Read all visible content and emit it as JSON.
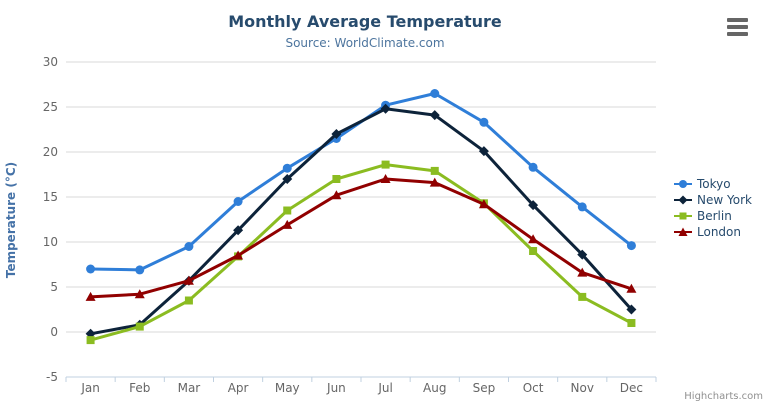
{
  "chart": {
    "title": "Monthly Average Temperature",
    "subtitle": "Source: WorldClimate.com",
    "credits": "Highcharts.com"
  },
  "chart_data": {
    "type": "line",
    "title": "Monthly Average Temperature",
    "subtitle": "Source: WorldClimate.com",
    "categories": [
      "Jan",
      "Feb",
      "Mar",
      "Apr",
      "May",
      "Jun",
      "Jul",
      "Aug",
      "Sep",
      "Oct",
      "Nov",
      "Dec"
    ],
    "series": [
      {
        "name": "Tokyo",
        "color": "#2f7ed8",
        "marker": "circle",
        "values": [
          7.0,
          6.9,
          9.5,
          14.5,
          18.2,
          21.5,
          25.2,
          26.5,
          23.3,
          18.3,
          13.9,
          9.6
        ]
      },
      {
        "name": "New York",
        "color": "#0d233a",
        "marker": "diamond",
        "values": [
          -0.2,
          0.8,
          5.7,
          11.3,
          17.0,
          22.0,
          24.8,
          24.1,
          20.1,
          14.1,
          8.6,
          2.5
        ]
      },
      {
        "name": "Berlin",
        "color": "#8bbc21",
        "marker": "square",
        "values": [
          -0.9,
          0.6,
          3.5,
          8.4,
          13.5,
          17.0,
          18.6,
          17.9,
          14.3,
          9.0,
          3.9,
          1.0
        ]
      },
      {
        "name": "London",
        "color": "#910000",
        "marker": "triangle-up",
        "values": [
          3.9,
          4.2,
          5.7,
          8.5,
          11.9,
          15.2,
          17.0,
          16.6,
          14.2,
          10.3,
          6.6,
          4.8
        ]
      }
    ],
    "xlabel": "",
    "ylabel": "Temperature (°C)",
    "ylim": [
      -5,
      30
    ],
    "yticks": [
      -5,
      0,
      5,
      10,
      15,
      20,
      25,
      30
    ],
    "grid": true,
    "legend_position": "right",
    "colors": {
      "grid_line": "#d8d8d8",
      "axis_line": "#c0d0e0",
      "tick_label": "#666666",
      "yaxis_title": "#4572a7",
      "title": "#274b6d",
      "subtitle": "#4d759e",
      "legend_text": "#274b6d",
      "credits_text": "#909090",
      "export_icon": "#666666"
    }
  }
}
